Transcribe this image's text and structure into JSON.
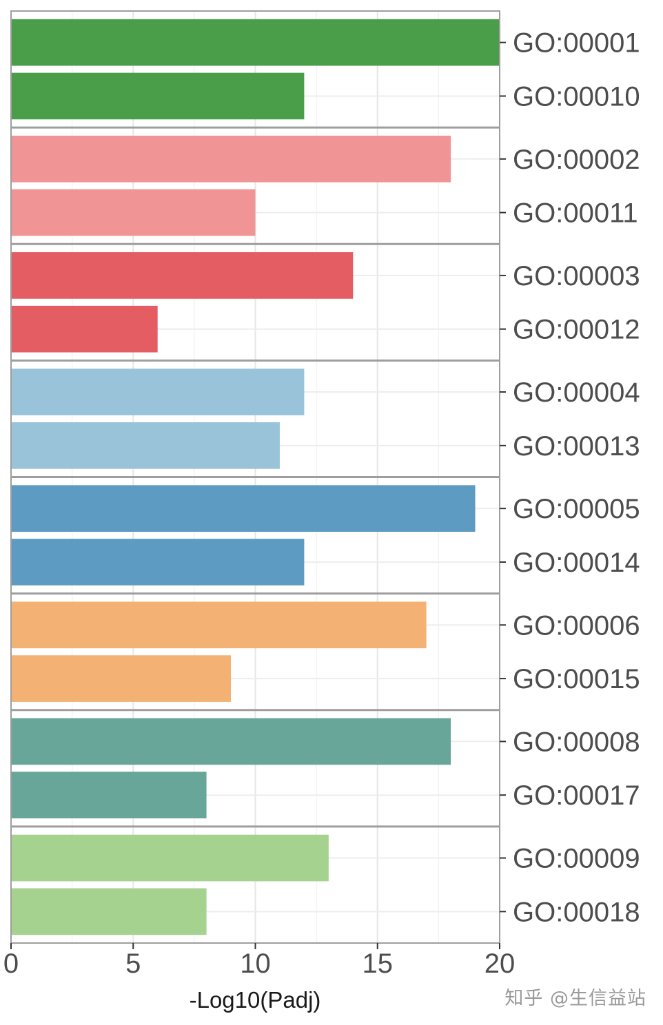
{
  "chart_data": {
    "type": "bar",
    "orientation": "horizontal",
    "xlabel": "-Log10(Padj)",
    "xlim": [
      0,
      20
    ],
    "xticks": [
      0,
      5,
      10,
      15,
      20
    ],
    "grid": true,
    "category_axis_side": "right",
    "groups": [
      {
        "color": "#4a9e4a",
        "bars": [
          {
            "label": "GO:00001",
            "value": 20
          },
          {
            "label": "GO:00010",
            "value": 12
          }
        ]
      },
      {
        "color": "#f09496",
        "bars": [
          {
            "label": "GO:00002",
            "value": 18
          },
          {
            "label": "GO:00011",
            "value": 10
          }
        ]
      },
      {
        "color": "#e35d62",
        "bars": [
          {
            "label": "GO:00003",
            "value": 14
          },
          {
            "label": "GO:00012",
            "value": 6
          }
        ]
      },
      {
        "color": "#98c3d9",
        "bars": [
          {
            "label": "GO:00004",
            "value": 12
          },
          {
            "label": "GO:00013",
            "value": 11
          }
        ]
      },
      {
        "color": "#5e9bc2",
        "bars": [
          {
            "label": "GO:00005",
            "value": 19
          },
          {
            "label": "GO:00014",
            "value": 12
          }
        ]
      },
      {
        "color": "#f3b174",
        "bars": [
          {
            "label": "GO:00006",
            "value": 17
          },
          {
            "label": "GO:00015",
            "value": 9
          }
        ]
      },
      {
        "color": "#67a699",
        "bars": [
          {
            "label": "GO:00008",
            "value": 18
          },
          {
            "label": "GO:00017",
            "value": 8
          }
        ]
      },
      {
        "color": "#a5d38f",
        "bars": [
          {
            "label": "GO:00009",
            "value": 13
          },
          {
            "label": "GO:00018",
            "value": 8
          }
        ]
      }
    ]
  },
  "watermark": "知乎 @生信益站"
}
